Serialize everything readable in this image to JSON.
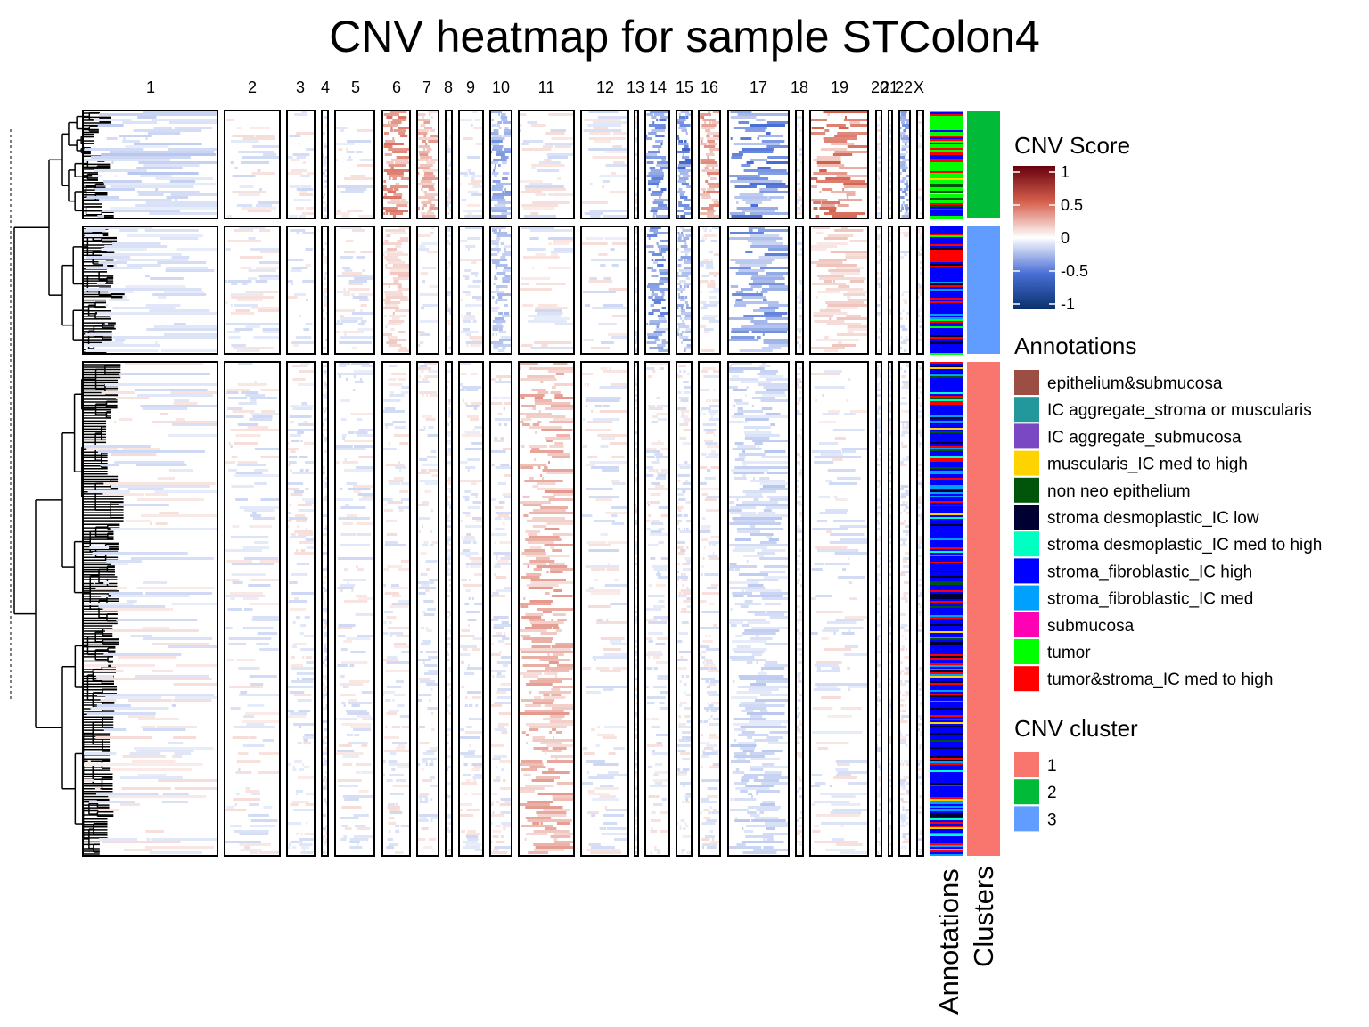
{
  "chart_data": {
    "type": "heatmap",
    "title": "CNV heatmap for sample STColon4",
    "columns": {
      "name": "chromosome",
      "labels": [
        "1",
        "2",
        "3",
        "4",
        "5",
        "6",
        "7",
        "8",
        "9",
        "10",
        "11",
        "12",
        "13",
        "14",
        "15",
        "16",
        "17",
        "18",
        "19",
        "20",
        "21",
        "22",
        "X"
      ]
    },
    "row_clusters": [
      {
        "cluster": "2",
        "color": "#00BA38",
        "order": 1
      },
      {
        "cluster": "3",
        "color": "#619CFF",
        "order": 2
      },
      {
        "cluster": "1",
        "color": "#F8766D",
        "order": 3
      }
    ],
    "value_scale": {
      "title": "CNV Score",
      "ticks": [
        "1",
        "0.5",
        "0",
        "-0.5",
        "-1"
      ],
      "tick_values": [
        1,
        0.5,
        0,
        -0.5,
        -1
      ],
      "min": -1,
      "max": 1,
      "colors": {
        "low": "#08306B",
        "mid": "#FFFFFF",
        "high": "#67000D"
      }
    },
    "approx_mean_cnv_by_cluster": {
      "note_cluster": "values read as color intensity, -1..1",
      "2": {
        "1": -0.15,
        "6": 0.35,
        "7": 0.25,
        "10": -0.3,
        "14": -0.4,
        "15": -0.45,
        "16": 0.3,
        "17": -0.4,
        "19": 0.4,
        "22": -0.3
      },
      "3": {
        "1": -0.1,
        "6": 0.15,
        "10": -0.2,
        "14": -0.35,
        "15": -0.25,
        "17": -0.35,
        "19": 0.15
      },
      "1": {
        "11": 0.25,
        "17": -0.15
      }
    },
    "side_annotations": {
      "annotations_label": "Annotations",
      "clusters_label": "Clusters"
    },
    "legend_annotations": {
      "title": "Annotations",
      "items": [
        {
          "label": "epithelium&submucosa",
          "color": "#9C4E45"
        },
        {
          "label": "IC aggregate_stroma or muscularis",
          "color": "#23989C"
        },
        {
          "label": "IC aggregate_submucosa",
          "color": "#7A48C2"
        },
        {
          "label": "muscularis_IC med to high",
          "color": "#FFD300"
        },
        {
          "label": "non neo epithelium",
          "color": "#00550A"
        },
        {
          "label": "stroma desmoplastic_IC low",
          "color": "#000033"
        },
        {
          "label": "stroma desmoplastic_IC med to high",
          "color": "#00FFC0"
        },
        {
          "label": "stroma_fibroblastic_IC high",
          "color": "#0000FF"
        },
        {
          "label": "stroma_fibroblastic_IC med",
          "color": "#00A0FF"
        },
        {
          "label": "submucosa",
          "color": "#FF00B4"
        },
        {
          "label": "tumor",
          "color": "#00FF00"
        },
        {
          "label": "tumor&stroma_IC med to high",
          "color": "#FF0000"
        }
      ]
    },
    "legend_clusters": {
      "title": "CNV cluster",
      "items": [
        {
          "label": "1",
          "color": "#F8766D"
        },
        {
          "label": "2",
          "color": "#00BA38"
        },
        {
          "label": "3",
          "color": "#619CFF"
        }
      ]
    }
  }
}
